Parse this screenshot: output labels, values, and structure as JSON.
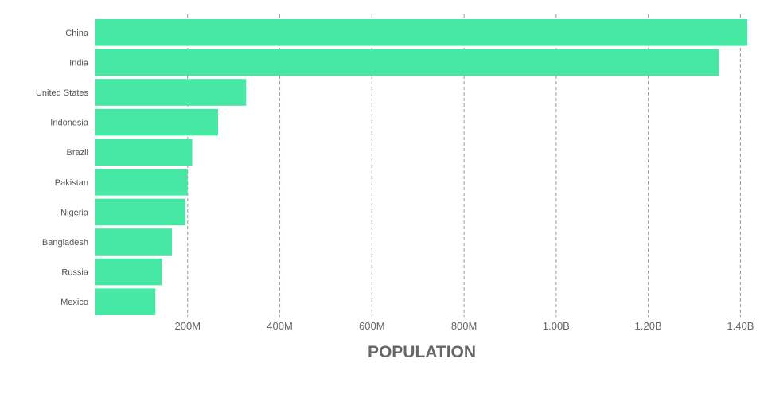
{
  "chart_data": {
    "type": "bar",
    "orientation": "horizontal",
    "xlabel": "POPULATION",
    "ylabel": "",
    "xlim": [
      0,
      1420000000
    ],
    "grid": true,
    "bar_color": "#47e8a4",
    "categories": [
      "China",
      "India",
      "United States",
      "Indonesia",
      "Brazil",
      "Pakistan",
      "Nigeria",
      "Bangladesh",
      "Russia",
      "Mexico"
    ],
    "values": [
      1415000000,
      1354000000,
      327000000,
      266000000,
      210000000,
      200000000,
      195000000,
      166000000,
      144000000,
      130000000
    ],
    "xticks": [
      {
        "value": 200000000,
        "label": "200M"
      },
      {
        "value": 400000000,
        "label": "400M"
      },
      {
        "value": 600000000,
        "label": "600M"
      },
      {
        "value": 800000000,
        "label": "800M"
      },
      {
        "value": 1000000000,
        "label": "1.00B"
      },
      {
        "value": 1200000000,
        "label": "1.20B"
      },
      {
        "value": 1400000000,
        "label": "1.40B"
      }
    ]
  }
}
